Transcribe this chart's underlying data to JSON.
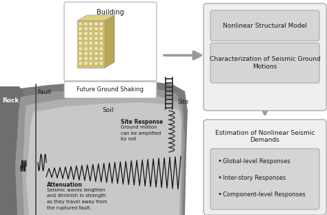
{
  "bg_color": "#ffffff",
  "ground_darkest": "#7a7a7a",
  "ground_dark": "#969696",
  "ground_medium": "#b0b0b0",
  "ground_light": "#c8c8c8",
  "rock_color": "#6e6e6e",
  "box_outer_fill": "#ebebeb",
  "box_inner_fill": "#d2d2d2",
  "box_edge": "#aaaaaa",
  "text_color": "#1a1a1a",
  "arrow_color": "#999999",
  "wave_color": "#111111",
  "title_building": "Building",
  "label_fault": "Fault",
  "label_rock": "Rock",
  "label_soil": "Soil",
  "label_site": "Site",
  "label_future": "Future Ground Shaking",
  "label_site_response": "Site Response",
  "label_sr_detail": "Ground motion\ncan be amplified\nby soil",
  "label_attenuation": "Attenuation",
  "label_att_detail": "Seismic waves lengthen\nand diminish in strength\nas they travel away from\nthe ruptured fault.",
  "box1_title": "Nonlinear Structural Model",
  "box2_title": "Characterization of Seismic Ground\nMotions",
  "box3_title": "Estimation of Nonlinear Seismic\nDemands",
  "bullet1": "Global-level Responses",
  "bullet2": "Inter-story Responses",
  "bullet3": "Component-level Responses"
}
